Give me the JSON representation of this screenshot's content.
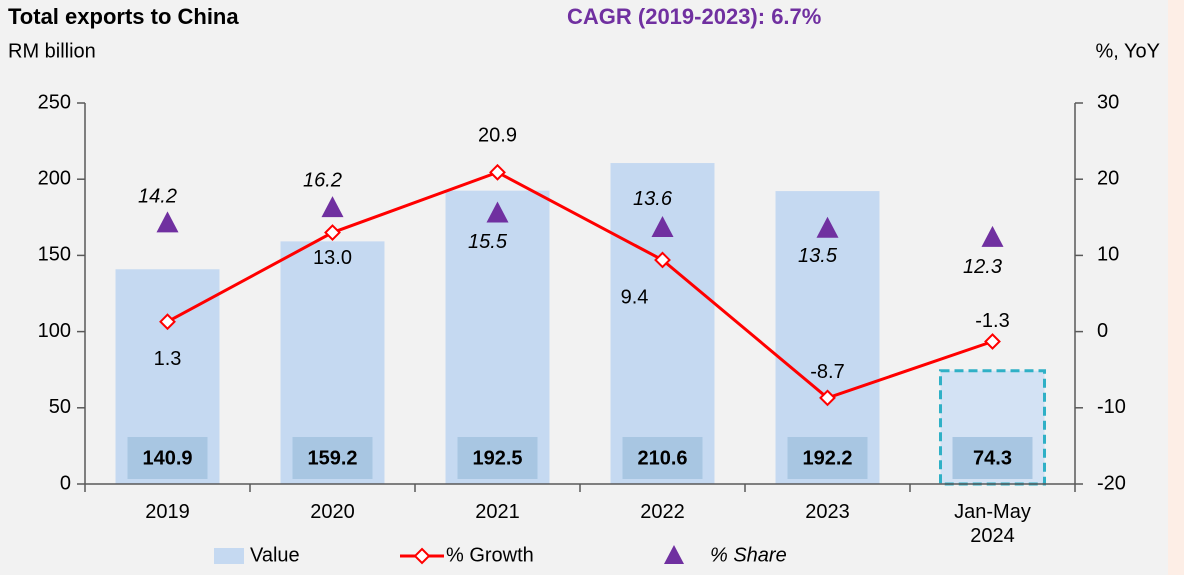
{
  "chart_data": {
    "type": "bar_line",
    "title": "Total exports to China",
    "subtitle": "CAGR (2019-2023): 6.7%",
    "y_label": "RM billion",
    "y2_label": "%, YoY",
    "categories": [
      "2019",
      "2020",
      "2021",
      "2022",
      "2023",
      "Jan-May 2024"
    ],
    "series": [
      {
        "name": "Value",
        "type": "bar",
        "color": "#c5d9f1",
        "label_color": "#a8c6e2",
        "values": [
          140.9,
          159.2,
          192.5,
          210.6,
          192.2,
          74.3
        ]
      },
      {
        "name": "% Growth",
        "type": "line",
        "axis": "y2",
        "color": "#ff0000",
        "values": [
          1.3,
          13.0,
          20.9,
          9.4,
          -8.7,
          -1.3
        ],
        "value_labels": [
          "1.3",
          "13.0",
          "20.9",
          "9.4",
          "-8.7",
          "-1.3"
        ]
      },
      {
        "name": "% Share",
        "type": "scatter",
        "axis": "y2",
        "color": "#7030a0",
        "values": [
          14.2,
          16.2,
          15.5,
          13.6,
          13.5,
          12.3
        ]
      }
    ],
    "ylim": [
      0,
      250
    ],
    "yticks": [
      0,
      50,
      100,
      150,
      200,
      250
    ],
    "y2lim": [
      -20,
      30
    ],
    "y2ticks": [
      -20,
      -10,
      0,
      10,
      20,
      30
    ],
    "grid": false
  }
}
